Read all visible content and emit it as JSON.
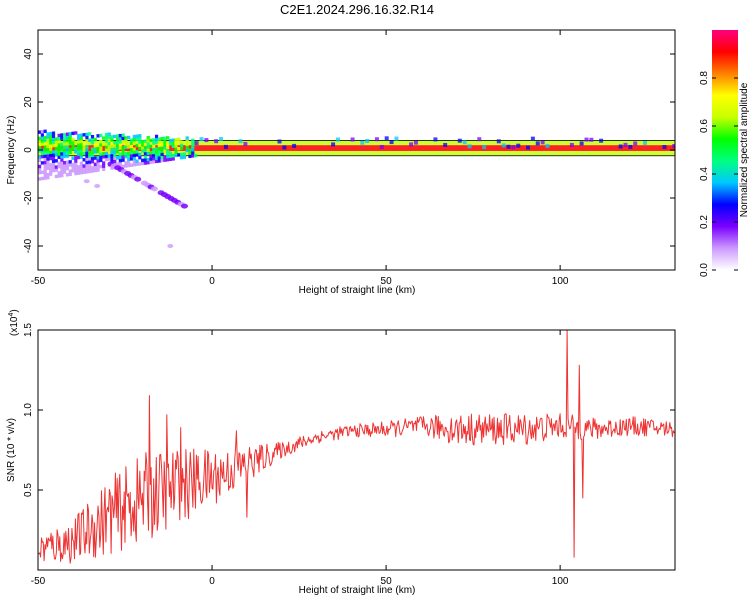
{
  "title": "C2E1.2024.296.16.32.R14",
  "chart_data": [
    {
      "type": "heatmap",
      "xlabel": "Height of straight line (km)",
      "ylabel": "Frequency (Hz)",
      "xlim": [
        -50,
        133
      ],
      "ylim": [
        -50,
        50
      ],
      "xticks": [
        -50,
        0,
        50,
        100
      ],
      "yticks": [
        40,
        20,
        0,
        -20,
        -40
      ],
      "colorbar": {
        "label": "Normalized spectral amplitude",
        "range": [
          0.0,
          1.0
        ],
        "ticks": [
          "0.0",
          "0.2",
          "0.4",
          "0.6",
          "0.8"
        ],
        "colors": [
          "#ffffff",
          "#cc99ff",
          "#7a00ff",
          "#0000ff",
          "#00c8ff",
          "#00ff80",
          "#00ff00",
          "#c8ff00",
          "#ffff00",
          "#ff8000",
          "#ff0000",
          "#ff0080"
        ]
      },
      "line_frequency_hz": 0.8,
      "band_halfwidth_hz": 3.2,
      "distortion": {
        "main_band": {
          "x_start": -50,
          "x_end": -5,
          "freq_range": [
            -12,
            8
          ],
          "center": 2
        },
        "diagonal_streak": {
          "from": [
            -30,
            -5
          ],
          "to": [
            -6,
            -25
          ]
        },
        "dashes": [
          [
            -36,
            -13
          ],
          [
            -33,
            -15
          ],
          [
            -12,
            -40
          ]
        ]
      }
    },
    {
      "type": "line",
      "xlabel": "Height of straight line (km)",
      "ylabel": "SNR (10 * v/v)",
      "y_multiplier": "(x10",
      "y_multiplier_exp": "4",
      "y_multiplier_close": ")",
      "xlim": [
        -50,
        133
      ],
      "ylim": [
        0,
        1.5
      ],
      "xticks": [
        -50,
        0,
        50,
        100
      ],
      "yticks": [
        "0.5",
        "1.0",
        "1.5"
      ],
      "color": "#ee3333",
      "envelope": [
        {
          "x": -50,
          "mean": 0.13,
          "amp": 0.1
        },
        {
          "x": -40,
          "mean": 0.18,
          "amp": 0.14
        },
        {
          "x": -30,
          "mean": 0.33,
          "amp": 0.24
        },
        {
          "x": -20,
          "mean": 0.45,
          "amp": 0.28
        },
        {
          "x": -10,
          "mean": 0.52,
          "amp": 0.25
        },
        {
          "x": 0,
          "mean": 0.58,
          "amp": 0.18
        },
        {
          "x": 10,
          "mean": 0.66,
          "amp": 0.12
        },
        {
          "x": 20,
          "mean": 0.75,
          "amp": 0.05
        },
        {
          "x": 30,
          "mean": 0.83,
          "amp": 0.04
        },
        {
          "x": 40,
          "mean": 0.87,
          "amp": 0.04
        },
        {
          "x": 50,
          "mean": 0.88,
          "amp": 0.05
        },
        {
          "x": 60,
          "mean": 0.9,
          "amp": 0.06
        },
        {
          "x": 70,
          "mean": 0.88,
          "amp": 0.1
        },
        {
          "x": 80,
          "mean": 0.88,
          "amp": 0.1
        },
        {
          "x": 90,
          "mean": 0.88,
          "amp": 0.1
        },
        {
          "x": 100,
          "mean": 0.9,
          "amp": 0.08
        },
        {
          "x": 110,
          "mean": 0.88,
          "amp": 0.07
        },
        {
          "x": 120,
          "mean": 0.9,
          "amp": 0.06
        },
        {
          "x": 133,
          "mean": 0.88,
          "amp": 0.05
        }
      ],
      "spikes": [
        {
          "x": -18,
          "y": 1.09
        },
        {
          "x": -13,
          "y": 0.97
        },
        {
          "x": -9,
          "y": 0.89
        },
        {
          "x": 7,
          "y": 0.87
        },
        {
          "x": 10,
          "y": 0.33
        },
        {
          "x": 102,
          "y": 1.5
        },
        {
          "x": 104,
          "y": 0.08
        },
        {
          "x": 105.5,
          "y": 1.28
        },
        {
          "x": 106.5,
          "y": 0.45
        }
      ]
    }
  ]
}
